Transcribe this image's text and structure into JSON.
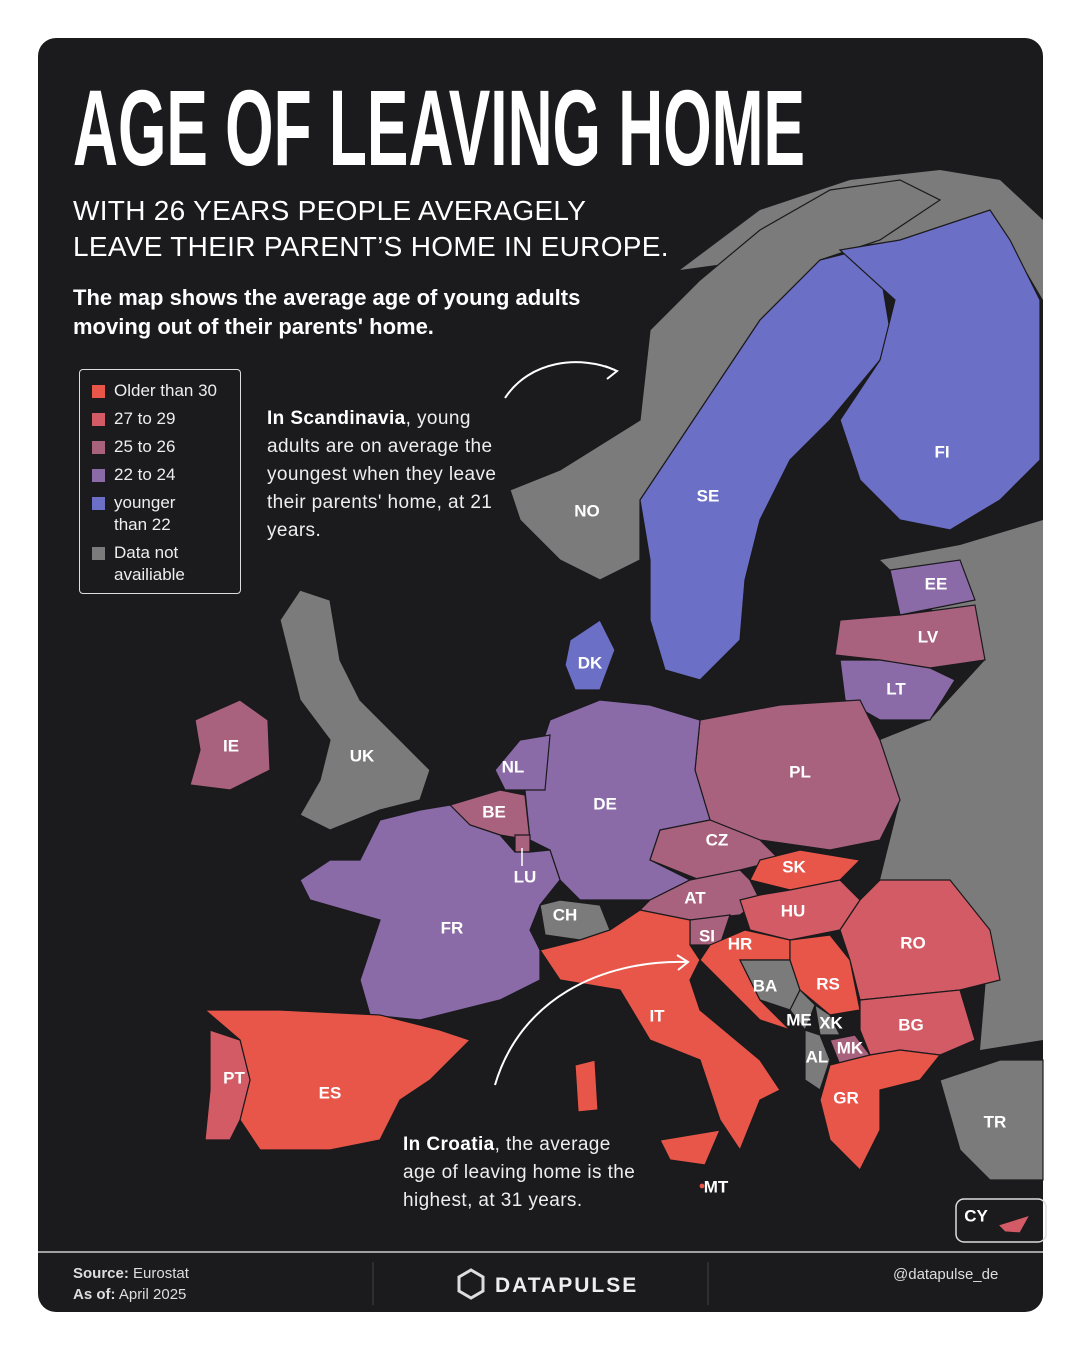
{
  "title": "AGE OF LEAVING HOME",
  "subtitle": [
    "WITH 26 YEARS PEOPLE AVERAGELY",
    "LEAVE THEIR PARENT’S HOME IN EUROPE."
  ],
  "description": "The map shows the average age of young adults moving out of their parents' home.",
  "legend": [
    {
      "label": "Older than 30",
      "color": "#e8564a"
    },
    {
      "label": "27 to 29",
      "color": "#d35b65"
    },
    {
      "label": "25 to 26",
      "color": "#a8627e"
    },
    {
      "label": "22 to 24",
      "color": "#8a6ba8"
    },
    {
      "label": "younger than 22",
      "color": "#6c6fc6"
    },
    {
      "label": "Data not availiable",
      "color": "#7b7b7b"
    }
  ],
  "annotations": [
    {
      "bold": "In Scandinavia",
      "text": ", young adults are on average the youngest when they leave their parents' home, at 21 years."
    },
    {
      "bold": "In Croatia",
      "text": ", the average age of leaving home is the highest, at 31 years."
    }
  ],
  "countries": [
    {
      "label": "NO",
      "color": "#7b7b7b"
    },
    {
      "label": "SE",
      "color": "#6c6fc6"
    },
    {
      "label": "FI",
      "color": "#6c6fc6"
    },
    {
      "label": "DK",
      "color": "#6c6fc6"
    },
    {
      "label": "EE",
      "color": "#8a6ba8"
    },
    {
      "label": "LV",
      "color": "#a8627e"
    },
    {
      "label": "LT",
      "color": "#8a6ba8"
    },
    {
      "label": "PL",
      "color": "#a8627e"
    },
    {
      "label": "DE",
      "color": "#8a6ba8"
    },
    {
      "label": "NL",
      "color": "#8a6ba8"
    },
    {
      "label": "BE",
      "color": "#a8627e"
    },
    {
      "label": "LU",
      "color": "#a8627e"
    },
    {
      "label": "FR",
      "color": "#8a6ba8"
    },
    {
      "label": "IE",
      "color": "#a8627e"
    },
    {
      "label": "UK",
      "color": "#7b7b7b"
    },
    {
      "label": "CZ",
      "color": "#a8627e"
    },
    {
      "label": "SK",
      "color": "#e8564a"
    },
    {
      "label": "AT",
      "color": "#a8627e"
    },
    {
      "label": "CH",
      "color": "#7b7b7b"
    },
    {
      "label": "HU",
      "color": "#d35b65"
    },
    {
      "label": "SI",
      "color": "#a8627e"
    },
    {
      "label": "HR",
      "color": "#e8564a"
    },
    {
      "label": "BA",
      "color": "#7b7b7b"
    },
    {
      "label": "RS",
      "color": "#e8564a"
    },
    {
      "label": "ME",
      "color": "#7b7b7b"
    },
    {
      "label": "XK",
      "color": "#7b7b7b"
    },
    {
      "label": "AL",
      "color": "#7b7b7b"
    },
    {
      "label": "MK",
      "color": "#a8627e"
    },
    {
      "label": "RO",
      "color": "#d35b65"
    },
    {
      "label": "BG",
      "color": "#d35b65"
    },
    {
      "label": "GR",
      "color": "#e8564a"
    },
    {
      "label": "IT",
      "color": "#e8564a"
    },
    {
      "label": "ES",
      "color": "#e8564a"
    },
    {
      "label": "PT",
      "color": "#d35b65"
    },
    {
      "label": "MT",
      "color": "#e8564a"
    },
    {
      "label": "TR",
      "color": "#7b7b7b"
    },
    {
      "label": "CY",
      "color": "#d35b65"
    }
  ],
  "footer": {
    "source_label": "Source:",
    "source": "Eurostat",
    "date_label": "As of:",
    "date": "April 2025",
    "brand": "DATAPULSE",
    "handle": "@datapulse_de"
  }
}
